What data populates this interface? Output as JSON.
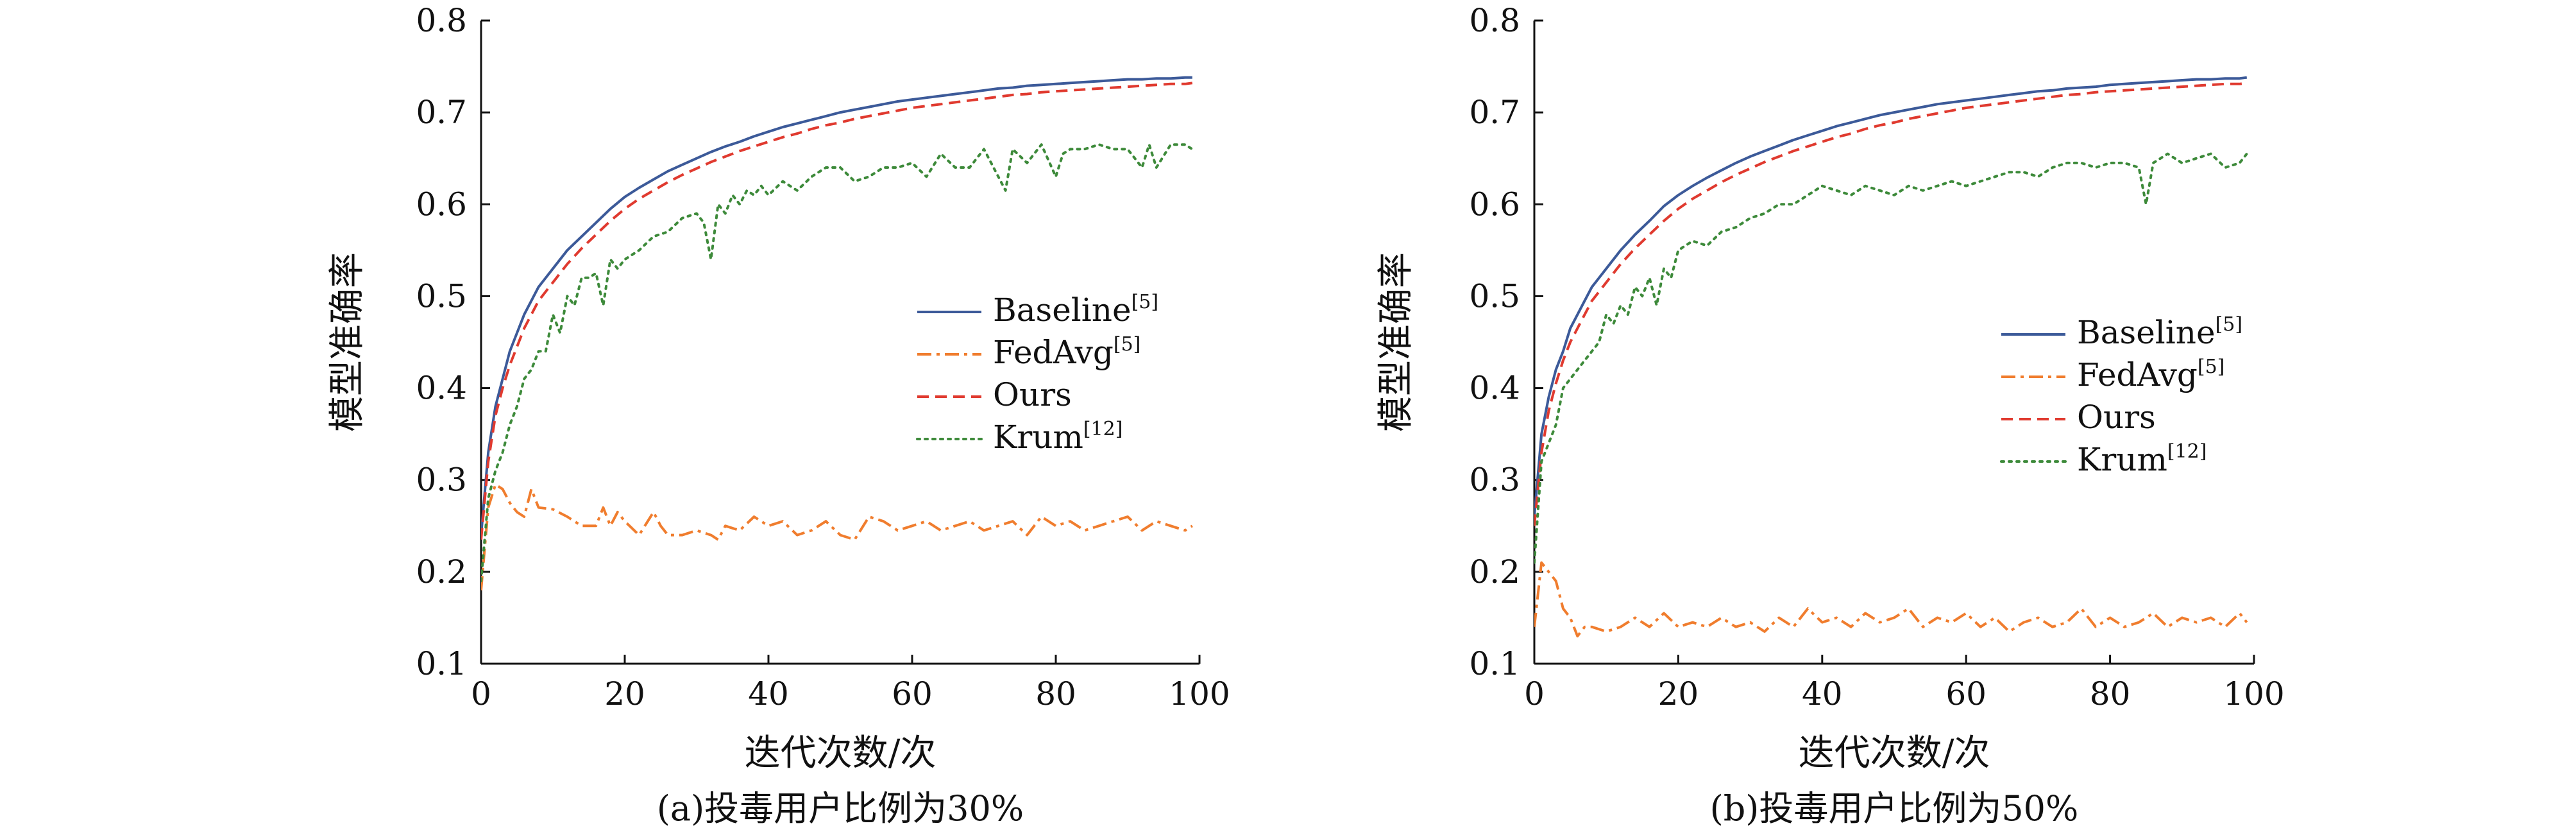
{
  "chart_data": [
    {
      "type": "line",
      "caption": "(a)投毒用户比例为30%",
      "xlabel": "迭代次数/次",
      "ylabel": "模型准确率",
      "xlim": [
        0,
        100
      ],
      "ylim": [
        0.1,
        0.8
      ],
      "xticks": [
        0,
        20,
        40,
        60,
        80,
        100
      ],
      "yticks": [
        0.1,
        0.2,
        0.3,
        0.4,
        0.5,
        0.6,
        0.7,
        0.8
      ],
      "grid": false,
      "legend_position": "middle-right",
      "series": [
        {
          "name": "Baseline",
          "ref": "[5]",
          "color": "#3c5a99",
          "dash": "solid",
          "x": [
            0,
            1,
            2,
            3,
            4,
            5,
            6,
            7,
            8,
            9,
            10,
            12,
            14,
            16,
            18,
            20,
            22,
            24,
            26,
            28,
            30,
            32,
            34,
            36,
            38,
            40,
            42,
            44,
            46,
            48,
            50,
            52,
            54,
            56,
            58,
            60,
            62,
            64,
            66,
            68,
            70,
            72,
            74,
            76,
            78,
            80,
            82,
            84,
            86,
            88,
            90,
            92,
            94,
            96,
            98,
            99
          ],
          "y": [
            0.24,
            0.33,
            0.38,
            0.41,
            0.44,
            0.46,
            0.48,
            0.495,
            0.51,
            0.52,
            0.53,
            0.55,
            0.565,
            0.58,
            0.595,
            0.608,
            0.618,
            0.627,
            0.636,
            0.643,
            0.65,
            0.657,
            0.663,
            0.668,
            0.674,
            0.679,
            0.684,
            0.688,
            0.692,
            0.696,
            0.7,
            0.703,
            0.706,
            0.709,
            0.712,
            0.714,
            0.716,
            0.718,
            0.72,
            0.722,
            0.724,
            0.726,
            0.727,
            0.729,
            0.73,
            0.731,
            0.732,
            0.733,
            0.734,
            0.735,
            0.736,
            0.736,
            0.737,
            0.737,
            0.738,
            0.738
          ]
        },
        {
          "name": "FedAvg",
          "ref": "[5]",
          "color": "#f07d2e",
          "dash": "dashdot",
          "x": [
            0,
            1,
            2,
            3,
            4,
            5,
            6,
            7,
            8,
            10,
            12,
            14,
            16,
            17,
            18,
            19,
            20,
            22,
            24,
            25,
            26,
            28,
            30,
            32,
            33,
            34,
            36,
            38,
            40,
            42,
            44,
            46,
            48,
            50,
            52,
            54,
            56,
            58,
            60,
            62,
            64,
            66,
            68,
            70,
            72,
            74,
            76,
            78,
            80,
            82,
            84,
            86,
            88,
            90,
            92,
            94,
            96,
            98,
            99
          ],
          "y": [
            0.18,
            0.27,
            0.295,
            0.29,
            0.275,
            0.265,
            0.26,
            0.29,
            0.27,
            0.268,
            0.26,
            0.25,
            0.25,
            0.27,
            0.25,
            0.265,
            0.255,
            0.24,
            0.265,
            0.25,
            0.24,
            0.24,
            0.245,
            0.24,
            0.235,
            0.25,
            0.245,
            0.26,
            0.25,
            0.255,
            0.24,
            0.245,
            0.255,
            0.24,
            0.235,
            0.26,
            0.255,
            0.245,
            0.25,
            0.255,
            0.245,
            0.25,
            0.255,
            0.245,
            0.25,
            0.255,
            0.24,
            0.26,
            0.25,
            0.255,
            0.245,
            0.25,
            0.255,
            0.26,
            0.245,
            0.255,
            0.25,
            0.245,
            0.25
          ]
        },
        {
          "name": "Ours",
          "ref": "",
          "color": "#e03a2f",
          "dash": "dashed",
          "x": [
            0,
            1,
            2,
            3,
            4,
            5,
            6,
            7,
            8,
            9,
            10,
            12,
            14,
            16,
            18,
            20,
            22,
            24,
            26,
            28,
            30,
            32,
            34,
            36,
            38,
            40,
            42,
            44,
            46,
            48,
            50,
            52,
            54,
            56,
            58,
            60,
            62,
            64,
            66,
            68,
            70,
            72,
            74,
            76,
            78,
            80,
            82,
            84,
            86,
            88,
            90,
            92,
            94,
            96,
            98,
            99
          ],
          "y": [
            0.235,
            0.32,
            0.37,
            0.4,
            0.425,
            0.445,
            0.465,
            0.48,
            0.495,
            0.505,
            0.515,
            0.535,
            0.552,
            0.567,
            0.582,
            0.595,
            0.606,
            0.615,
            0.624,
            0.632,
            0.639,
            0.646,
            0.652,
            0.658,
            0.663,
            0.668,
            0.673,
            0.677,
            0.682,
            0.686,
            0.689,
            0.693,
            0.696,
            0.699,
            0.702,
            0.705,
            0.707,
            0.709,
            0.711,
            0.713,
            0.715,
            0.717,
            0.719,
            0.72,
            0.722,
            0.723,
            0.724,
            0.725,
            0.726,
            0.727,
            0.728,
            0.729,
            0.73,
            0.731,
            0.731,
            0.732
          ]
        },
        {
          "name": "Krum",
          "ref": "[12]",
          "color": "#3d8a3a",
          "dash": "dotted",
          "x": [
            0,
            1,
            2,
            3,
            4,
            5,
            6,
            7,
            8,
            9,
            10,
            11,
            12,
            13,
            14,
            15,
            16,
            17,
            18,
            19,
            20,
            22,
            24,
            26,
            28,
            30,
            31,
            32,
            33,
            34,
            35,
            36,
            37,
            38,
            39,
            40,
            42,
            44,
            46,
            48,
            50,
            52,
            54,
            56,
            58,
            60,
            62,
            64,
            66,
            68,
            70,
            72,
            73,
            74,
            76,
            78,
            80,
            81,
            82,
            84,
            86,
            88,
            90,
            92,
            93,
            94,
            96,
            98,
            99
          ],
          "y": [
            0.19,
            0.28,
            0.31,
            0.33,
            0.36,
            0.38,
            0.41,
            0.42,
            0.44,
            0.44,
            0.48,
            0.46,
            0.5,
            0.49,
            0.52,
            0.52,
            0.525,
            0.49,
            0.54,
            0.53,
            0.54,
            0.55,
            0.565,
            0.57,
            0.585,
            0.59,
            0.58,
            0.54,
            0.6,
            0.59,
            0.61,
            0.6,
            0.615,
            0.61,
            0.62,
            0.61,
            0.625,
            0.615,
            0.63,
            0.64,
            0.64,
            0.625,
            0.63,
            0.64,
            0.64,
            0.645,
            0.63,
            0.655,
            0.64,
            0.64,
            0.66,
            0.63,
            0.615,
            0.66,
            0.645,
            0.665,
            0.63,
            0.655,
            0.66,
            0.66,
            0.665,
            0.66,
            0.66,
            0.64,
            0.665,
            0.64,
            0.665,
            0.665,
            0.66
          ]
        }
      ]
    },
    {
      "type": "line",
      "caption": "(b)投毒用户比例为50%",
      "xlabel": "迭代次数/次",
      "ylabel": "模型准确率",
      "xlim": [
        0,
        100
      ],
      "ylim": [
        0.1,
        0.8
      ],
      "xticks": [
        0,
        20,
        40,
        60,
        80,
        100
      ],
      "yticks": [
        0.1,
        0.2,
        0.3,
        0.4,
        0.5,
        0.6,
        0.7,
        0.8
      ],
      "grid": false,
      "legend_position": "middle-right",
      "series": [
        {
          "name": "Baseline",
          "ref": "[5]",
          "color": "#3c5a99",
          "dash": "solid",
          "x": [
            0,
            1,
            2,
            3,
            4,
            5,
            6,
            7,
            8,
            9,
            10,
            12,
            14,
            16,
            18,
            20,
            22,
            24,
            26,
            28,
            30,
            32,
            34,
            36,
            38,
            40,
            42,
            44,
            46,
            48,
            50,
            52,
            54,
            56,
            58,
            60,
            62,
            64,
            66,
            68,
            70,
            72,
            74,
            76,
            78,
            80,
            82,
            84,
            86,
            88,
            90,
            92,
            94,
            96,
            98,
            99
          ],
          "y": [
            0.26,
            0.35,
            0.39,
            0.42,
            0.44,
            0.465,
            0.48,
            0.495,
            0.51,
            0.52,
            0.53,
            0.55,
            0.567,
            0.582,
            0.598,
            0.61,
            0.62,
            0.629,
            0.637,
            0.645,
            0.652,
            0.658,
            0.664,
            0.67,
            0.675,
            0.68,
            0.685,
            0.689,
            0.693,
            0.697,
            0.7,
            0.703,
            0.706,
            0.709,
            0.711,
            0.713,
            0.715,
            0.717,
            0.719,
            0.721,
            0.723,
            0.724,
            0.726,
            0.727,
            0.728,
            0.73,
            0.731,
            0.732,
            0.733,
            0.734,
            0.735,
            0.736,
            0.736,
            0.737,
            0.737,
            0.738
          ]
        },
        {
          "name": "FedAvg",
          "ref": "[5]",
          "color": "#f07d2e",
          "dash": "dashdot",
          "x": [
            0,
            1,
            2,
            3,
            4,
            5,
            6,
            7,
            8,
            10,
            12,
            14,
            16,
            18,
            20,
            22,
            24,
            26,
            28,
            30,
            32,
            34,
            36,
            38,
            40,
            42,
            44,
            46,
            48,
            50,
            52,
            54,
            56,
            58,
            60,
            62,
            64,
            66,
            68,
            70,
            72,
            74,
            76,
            78,
            80,
            82,
            84,
            86,
            88,
            90,
            92,
            94,
            96,
            98,
            99
          ],
          "y": [
            0.14,
            0.21,
            0.2,
            0.19,
            0.16,
            0.15,
            0.13,
            0.14,
            0.14,
            0.135,
            0.14,
            0.15,
            0.14,
            0.155,
            0.14,
            0.145,
            0.14,
            0.15,
            0.14,
            0.145,
            0.135,
            0.15,
            0.14,
            0.16,
            0.145,
            0.15,
            0.14,
            0.155,
            0.145,
            0.15,
            0.16,
            0.14,
            0.15,
            0.145,
            0.155,
            0.14,
            0.15,
            0.135,
            0.145,
            0.15,
            0.14,
            0.145,
            0.16,
            0.14,
            0.15,
            0.14,
            0.145,
            0.155,
            0.14,
            0.15,
            0.145,
            0.15,
            0.14,
            0.155,
            0.145
          ]
        },
        {
          "name": "Ours",
          "ref": "",
          "color": "#e03a2f",
          "dash": "dashed",
          "x": [
            0,
            1,
            2,
            3,
            4,
            5,
            6,
            7,
            8,
            9,
            10,
            12,
            14,
            16,
            18,
            20,
            22,
            24,
            26,
            28,
            30,
            32,
            34,
            36,
            38,
            40,
            42,
            44,
            46,
            48,
            50,
            52,
            54,
            56,
            58,
            60,
            62,
            64,
            66,
            68,
            70,
            72,
            74,
            76,
            78,
            80,
            82,
            84,
            86,
            88,
            90,
            92,
            94,
            96,
            98,
            99
          ],
          "y": [
            0.25,
            0.33,
            0.375,
            0.405,
            0.43,
            0.45,
            0.465,
            0.48,
            0.495,
            0.505,
            0.515,
            0.535,
            0.552,
            0.567,
            0.582,
            0.595,
            0.606,
            0.615,
            0.624,
            0.632,
            0.639,
            0.646,
            0.652,
            0.658,
            0.663,
            0.668,
            0.673,
            0.677,
            0.682,
            0.686,
            0.689,
            0.693,
            0.696,
            0.699,
            0.702,
            0.705,
            0.707,
            0.709,
            0.711,
            0.713,
            0.715,
            0.717,
            0.719,
            0.72,
            0.722,
            0.723,
            0.724,
            0.725,
            0.726,
            0.727,
            0.728,
            0.729,
            0.73,
            0.731,
            0.731,
            0.732
          ]
        },
        {
          "name": "Krum",
          "ref": "[12]",
          "color": "#3d8a3a",
          "dash": "dotted",
          "x": [
            0,
            1,
            2,
            3,
            4,
            5,
            6,
            7,
            8,
            9,
            10,
            11,
            12,
            13,
            14,
            15,
            16,
            17,
            18,
            19,
            20,
            22,
            24,
            26,
            28,
            30,
            32,
            34,
            36,
            38,
            40,
            42,
            44,
            46,
            48,
            50,
            52,
            54,
            56,
            58,
            60,
            62,
            64,
            66,
            68,
            70,
            72,
            74,
            76,
            78,
            80,
            82,
            84,
            85,
            86,
            88,
            90,
            92,
            94,
            96,
            98,
            99
          ],
          "y": [
            0.21,
            0.32,
            0.34,
            0.36,
            0.4,
            0.41,
            0.42,
            0.43,
            0.44,
            0.45,
            0.48,
            0.47,
            0.49,
            0.48,
            0.51,
            0.5,
            0.52,
            0.49,
            0.53,
            0.52,
            0.55,
            0.56,
            0.555,
            0.57,
            0.575,
            0.585,
            0.59,
            0.6,
            0.6,
            0.61,
            0.62,
            0.615,
            0.61,
            0.62,
            0.615,
            0.61,
            0.62,
            0.615,
            0.62,
            0.625,
            0.62,
            0.625,
            0.63,
            0.635,
            0.635,
            0.63,
            0.64,
            0.645,
            0.645,
            0.64,
            0.645,
            0.645,
            0.64,
            0.6,
            0.645,
            0.655,
            0.645,
            0.65,
            0.655,
            0.64,
            0.645,
            0.655
          ]
        }
      ]
    }
  ]
}
